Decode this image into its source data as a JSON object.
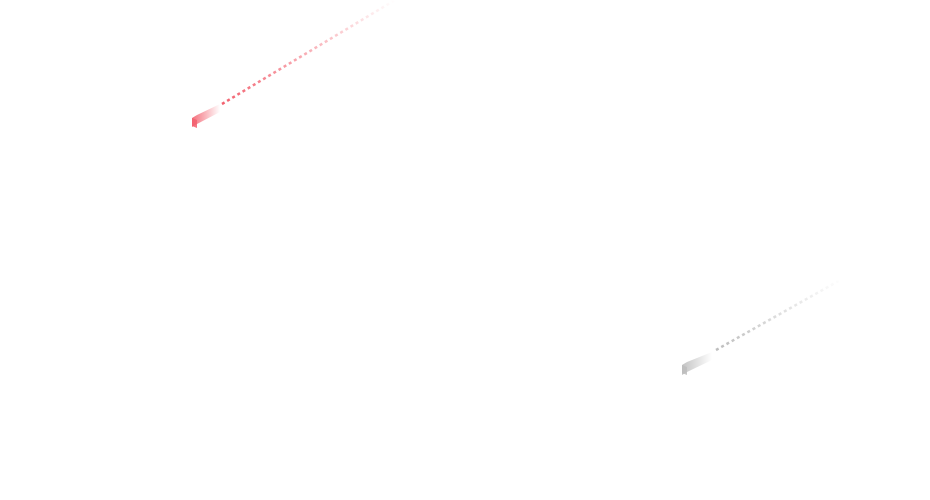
{
  "background": "#ffffff",
  "streaks": [
    {
      "name": "red-streak",
      "color": "#f2606e",
      "icon": "shooting-star"
    },
    {
      "name": "gray-streak",
      "color": "#bdbdbd",
      "icon": "shooting-star"
    }
  ]
}
